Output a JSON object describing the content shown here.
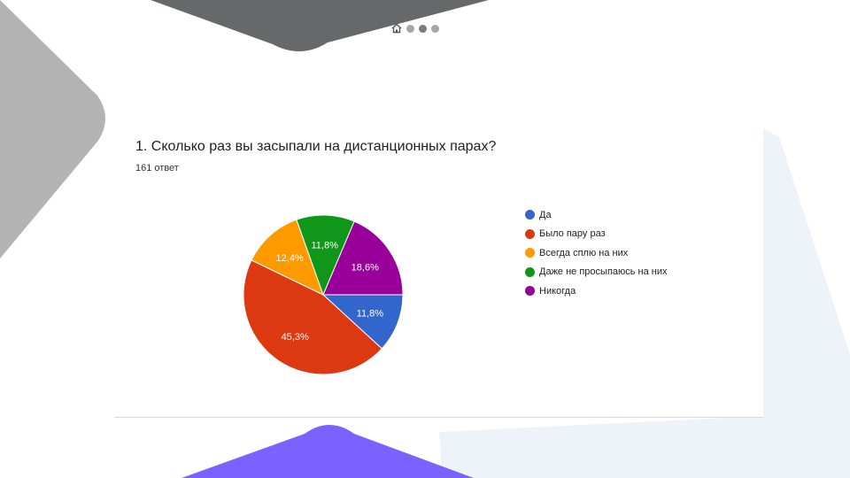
{
  "question": {
    "title": "1. Сколько раз вы засыпали на дистанционных парах?",
    "responses": "161 ответ"
  },
  "navigation": {
    "icon": "home-icon",
    "dots": 3,
    "active_dot": 2
  },
  "colors": {
    "top_shape": "#67686a",
    "left_shape": "#b3b3b3",
    "right_shape": "#eef3fa",
    "bottom_shape": "#7b61ff"
  },
  "chart_data": {
    "type": "pie",
    "start_angle_deg": 90,
    "direction": "clockwise",
    "slices": [
      {
        "label": "Да",
        "value": 11.8,
        "value_label": "11,8%",
        "color": "#3366cc"
      },
      {
        "label": "Было пару раз",
        "value": 45.3,
        "value_label": "45,3%",
        "color": "#dc3912"
      },
      {
        "label": "Всегда сплю на них",
        "value": 12.4,
        "value_label": "12,4%",
        "color": "#ff9900"
      },
      {
        "label": "Даже не просыпаюсь на них",
        "value": 11.8,
        "value_label": "11,8%",
        "color": "#109618"
      },
      {
        "label": "Никогда",
        "value": 18.6,
        "value_label": "18,6%",
        "color": "#990099"
      }
    ],
    "legend_position": "right"
  }
}
